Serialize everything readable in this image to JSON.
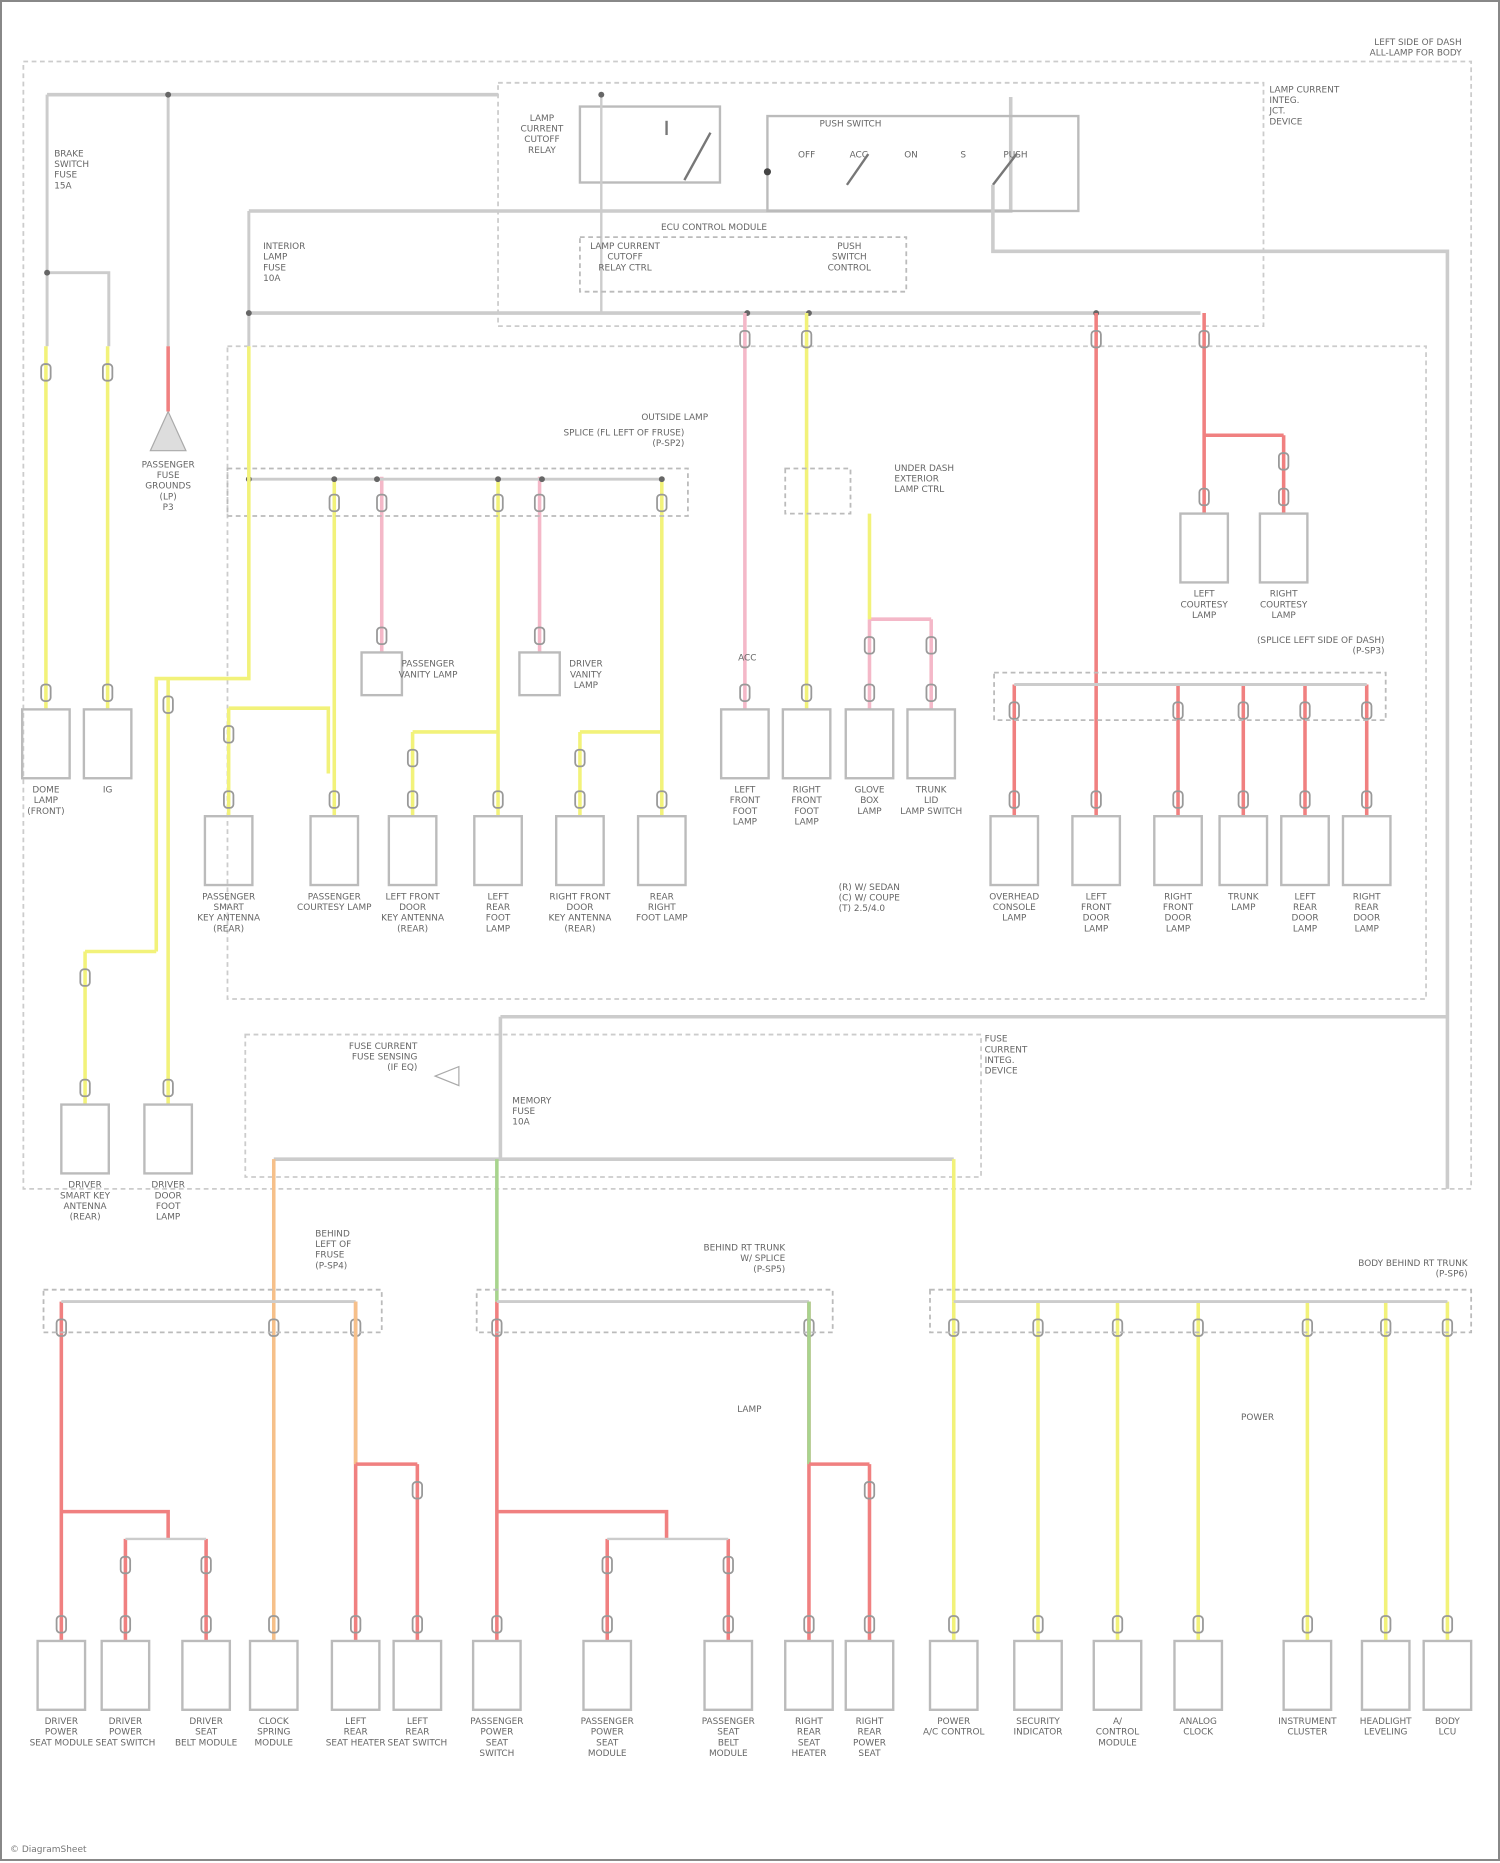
{
  "header": {
    "location_note": [
      "LEFT SIDE OF DASH",
      "ALL-LAMP FOR BODY"
    ]
  },
  "colors": {
    "yellow": "#f2f27a",
    "red": "#f08080",
    "pink": "#f4b8c8",
    "orange": "#f6c08a",
    "green": "#a8d48e",
    "gray": "#cccccc",
    "frame": "#bbbbbb"
  },
  "modules": {
    "lamp_relay": [
      "LAMP",
      "CURRENT",
      "CUTOFF",
      "RELAY"
    ],
    "push_switch": {
      "title": "PUSH SWITCH",
      "positions": [
        "OFF",
        "ACC",
        "ON",
        "S",
        "PUSH"
      ]
    },
    "ecu_control": {
      "title": "ECU CONTROL MODULE",
      "left": [
        "LAMP CURRENT",
        "CUTOFF",
        "RELAY CTRL"
      ],
      "right": [
        "PUSH",
        "SWITCH",
        "CONTROL"
      ]
    },
    "junction_top": [
      "LAMP CURRENT",
      "INTEG.",
      "JCT.",
      "DEVICE"
    ],
    "junction_bottom": [
      "FUSE",
      "CURRENT",
      "INTEG.",
      "DEVICE"
    ],
    "fuse_left": [
      "BRAKE",
      "SWITCH",
      "FUSE",
      "15A"
    ],
    "fuse_interior": [
      "INTERIOR",
      "LAMP",
      "FUSE",
      "10A"
    ],
    "fuse_battery": [
      "MEMORY",
      "FUSE",
      "10A"
    ],
    "fuse_box_label": [
      "FUSE CURRENT",
      "FUSE SENSING",
      "(IF EQ)"
    ],
    "ground": [
      "PASSENGER",
      "FUSE",
      "GROUNDS",
      "(LP)",
      "P3"
    ]
  },
  "splices": [
    {
      "label": [
        "SPLICE (FL LEFT OF FRUSE)",
        "(P-SP2)"
      ]
    },
    {
      "label": [
        "UNDER DASH",
        "EXTERIOR",
        "LAMP CTRL"
      ]
    },
    {
      "label": [
        "(SPLICE LEFT SIDE OF DASH)",
        "(P-SP3)"
      ]
    },
    {
      "label": [
        "BEHIND",
        "LEFT OF",
        "FRUSE",
        "(P-SP4)"
      ]
    },
    {
      "label": [
        "BEHIND RT TRUNK",
        "W/ SPLICE",
        "(P-SP5)"
      ]
    },
    {
      "label": [
        "BODY BEHIND RT TRUNK",
        "(P-SP6)"
      ]
    }
  ],
  "annotations": [
    "OUTSIDE LAMP",
    "ACC",
    "POWER",
    "LAMP"
  ],
  "legend": [
    "(R) W/ SEDAN",
    "(C) W/ COUPE",
    "(T) 2.5/4.0"
  ],
  "components": [
    {
      "label": [
        "DOME",
        "LAMP",
        "(FRONT)"
      ]
    },
    {
      "label": [
        "IG"
      ]
    },
    {
      "label": [
        "LEFT",
        "FRONT",
        "FOOT",
        "LAMP"
      ]
    },
    {
      "label": [
        "RIGHT",
        "FRONT",
        "FOOT",
        "LAMP"
      ]
    },
    {
      "label": [
        "GLOVE",
        "BOX",
        "LAMP"
      ]
    },
    {
      "label": [
        "TRUNK",
        "LID",
        "LAMP SWITCH"
      ]
    },
    {
      "label": [
        "LEFT",
        "COURTESY",
        "LAMP"
      ]
    },
    {
      "label": [
        "RIGHT",
        "COURTESY",
        "LAMP"
      ]
    },
    {
      "label": [
        "PASSENGER",
        "SMART",
        "KEY ANTENNA",
        "(REAR)"
      ]
    },
    {
      "label": [
        "PASSENGER",
        "COURTESY LAMP"
      ]
    },
    {
      "label": [
        "LEFT FRONT",
        "DOOR",
        "KEY ANTENNA",
        "(REAR)"
      ]
    },
    {
      "label": [
        "LEFT",
        "REAR",
        "FOOT",
        "LAMP"
      ]
    },
    {
      "label": [
        "RIGHT FRONT",
        "DOOR",
        "KEY ANTENNA",
        "(REAR)"
      ]
    },
    {
      "label": [
        "REAR",
        "RIGHT",
        "FOOT LAMP"
      ]
    },
    {
      "label": [
        "PASSENGER",
        "VANITY LAMP"
      ]
    },
    {
      "label": [
        "DRIVER",
        "VANITY",
        "LAMP"
      ]
    },
    {
      "label": [
        "OVERHEAD",
        "CONSOLE",
        "LAMP"
      ]
    },
    {
      "label": [
        "LEFT",
        "FRONT",
        "DOOR",
        "LAMP"
      ]
    },
    {
      "label": [
        "RIGHT",
        "FRONT",
        "DOOR",
        "LAMP"
      ]
    },
    {
      "label": [
        "TRUNK",
        "LAMP"
      ]
    },
    {
      "label": [
        "LEFT",
        "REAR",
        "DOOR",
        "LAMP"
      ]
    },
    {
      "label": [
        "RIGHT",
        "REAR",
        "DOOR",
        "LAMP"
      ]
    },
    {
      "label": [
        "DRIVER",
        "SMART KEY",
        "ANTENNA",
        "(REAR)"
      ]
    },
    {
      "label": [
        "DRIVER",
        "DOOR",
        "FOOT",
        "LAMP"
      ]
    },
    {
      "label": [
        "DRIVER",
        "POWER",
        "SEAT MODULE"
      ]
    },
    {
      "label": [
        "DRIVER",
        "POWER",
        "SEAT SWITCH"
      ]
    },
    {
      "label": [
        "DRIVER",
        "SEAT",
        "BELT MODULE"
      ]
    },
    {
      "label": [
        "CLOCK",
        "SPRING",
        "MODULE"
      ]
    },
    {
      "label": [
        "LEFT",
        "REAR",
        "SEAT HEATER"
      ]
    },
    {
      "label": [
        "LEFT",
        "REAR",
        "SEAT SWITCH"
      ]
    },
    {
      "label": [
        "PASSENGER",
        "POWER",
        "SEAT",
        "SWITCH"
      ]
    },
    {
      "label": [
        "PASSENGER",
        "POWER",
        "SEAT",
        "MODULE"
      ]
    },
    {
      "label": [
        "PASSENGER",
        "SEAT",
        "BELT",
        "MODULE"
      ]
    },
    {
      "label": [
        "RIGHT",
        "REAR",
        "SEAT",
        "HEATER"
      ]
    },
    {
      "label": [
        "RIGHT",
        "REAR",
        "POWER",
        "SEAT"
      ]
    },
    {
      "label": [
        "POWER",
        "A/C CONTROL"
      ]
    },
    {
      "label": [
        "SECURITY",
        "INDICATOR"
      ]
    },
    {
      "label": [
        "A/",
        "CONTROL",
        "MODULE"
      ]
    },
    {
      "label": [
        "ANALOG",
        "CLOCK"
      ]
    },
    {
      "label": [
        "INSTRUMENT",
        "CLUSTER"
      ]
    },
    {
      "label": [
        "HEADLIGHT",
        "LEVELING"
      ]
    },
    {
      "label": [
        "BODY",
        "LCU"
      ]
    }
  ],
  "footer": "© DiagramSheet"
}
